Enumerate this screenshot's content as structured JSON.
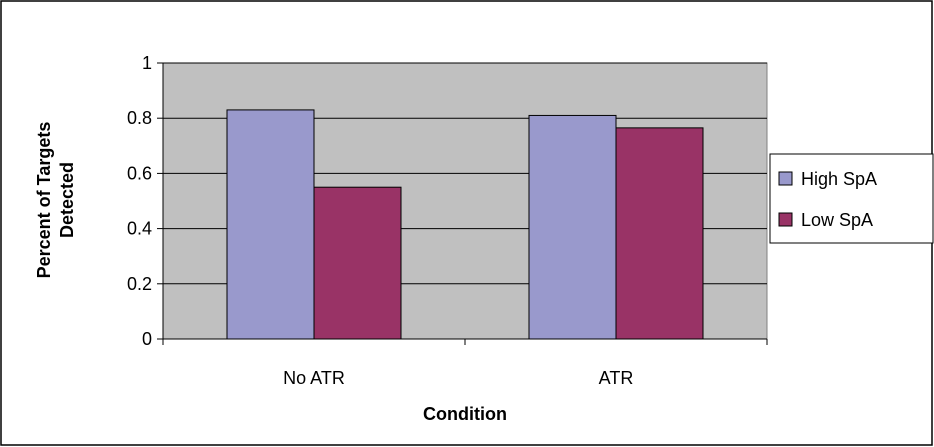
{
  "chart_data": {
    "type": "bar",
    "categories": [
      "No ATR",
      "ATR"
    ],
    "series": [
      {
        "name": "High SpA",
        "values": [
          0.83,
          0.81
        ],
        "color": "#9999CC"
      },
      {
        "name": "Low SpA",
        "values": [
          0.55,
          0.765
        ],
        "color": "#993366"
      }
    ],
    "xlabel": "Condition",
    "ylabel": "Percent of Targets Detected",
    "ylim": [
      0,
      1
    ],
    "yticks": [
      0,
      0.2,
      0.4,
      0.6,
      0.8,
      1
    ],
    "ytick_labels": [
      "0",
      "0.2",
      "0.4",
      "0.6",
      "0.8",
      "1"
    ],
    "grid": true,
    "plot_background": "#C0C0C0",
    "legend_position": "right"
  }
}
